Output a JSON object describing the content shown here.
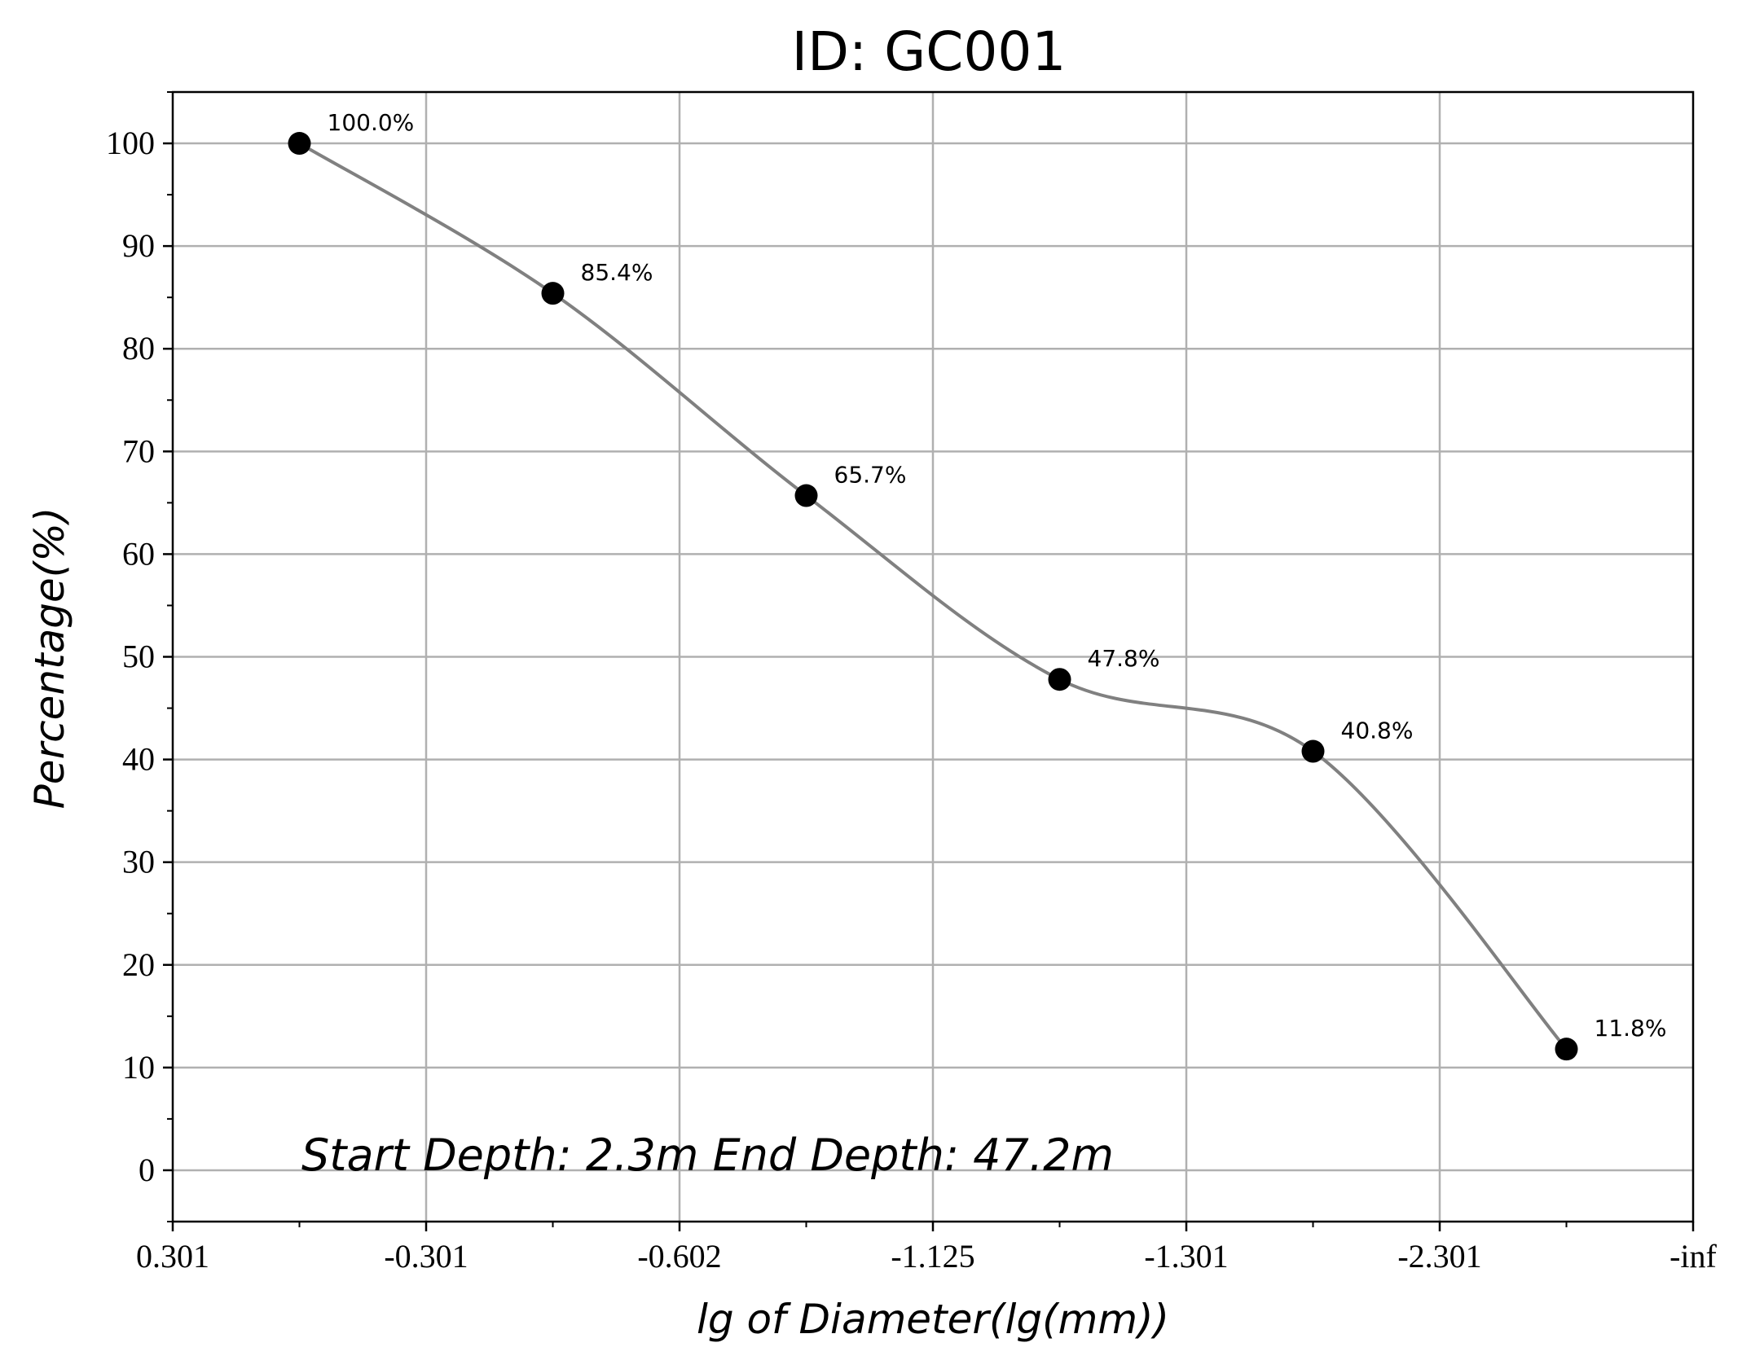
{
  "chart_data": {
    "type": "line",
    "title": "ID: GC001",
    "xlabel": "lg of Diameter(lg(mm))",
    "ylabel": "Percentage(%)",
    "x_tick_labels": [
      "0.301",
      "-0.301",
      "-0.602",
      "-1.125",
      "-1.301",
      "-2.301",
      "-inf"
    ],
    "y_ticks": [
      0,
      10,
      20,
      30,
      40,
      50,
      60,
      70,
      80,
      90,
      100
    ],
    "ylim": [
      -5,
      105
    ],
    "grid": true,
    "series": [
      {
        "points": [
          {
            "x": "between 0.301 and -0.301",
            "y": 100.0,
            "label": "100.0%"
          },
          {
            "x": "between -0.301 and -0.602",
            "y": 85.4,
            "label": "85.4%"
          },
          {
            "x": "between -0.602 and -1.125",
            "y": 65.7,
            "label": "65.7%"
          },
          {
            "x": "between -1.125 and -1.301",
            "y": 47.8,
            "label": "47.8%"
          },
          {
            "x": "between -1.301 and -2.301",
            "y": 40.8,
            "label": "40.8%"
          },
          {
            "x": "between -2.301 and -inf",
            "y": 11.8,
            "label": "11.8%"
          }
        ],
        "line_color": "#808080",
        "marker_color": "#000000"
      }
    ],
    "annotation": "Start Depth: 2.3m End Depth: 47.2m"
  }
}
